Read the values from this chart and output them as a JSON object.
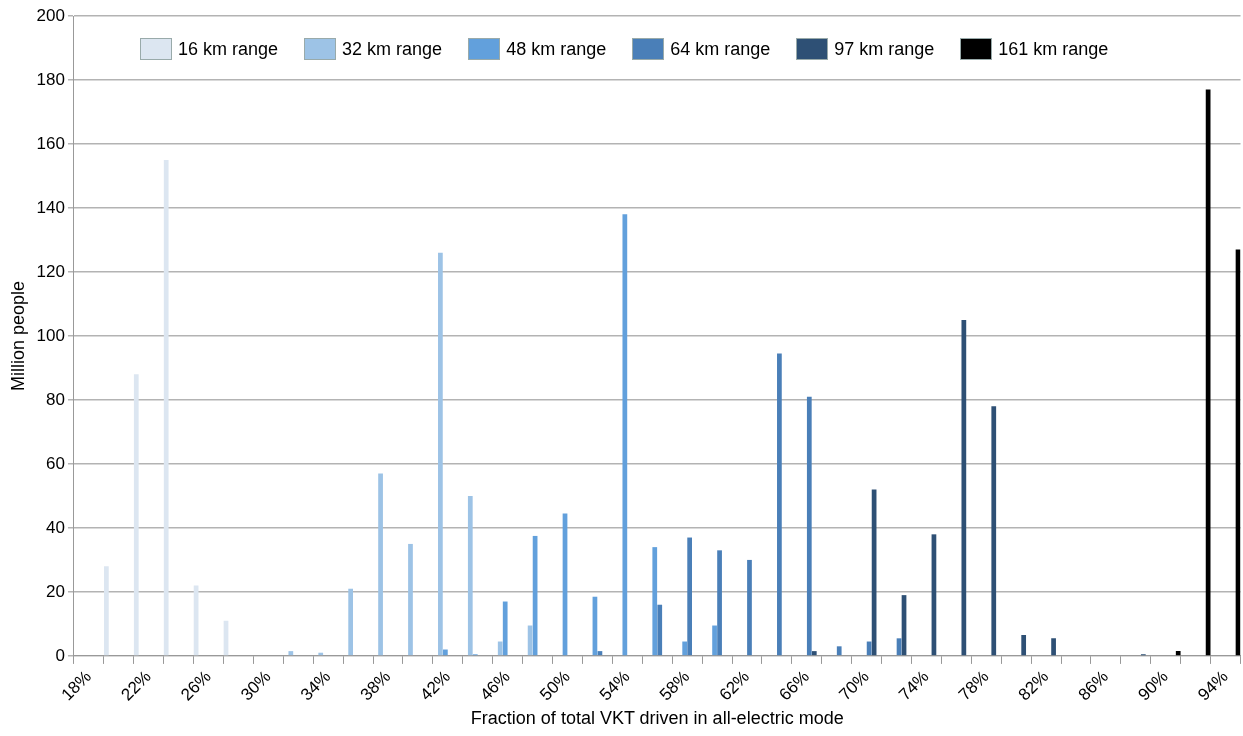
{
  "chart_data": {
    "type": "bar",
    "xlabel": "Fraction of total VKT driven in all-electric mode",
    "ylabel": "Million people",
    "categories": [
      "18%",
      null,
      "22%",
      null,
      "26%",
      null,
      "30%",
      null,
      "34%",
      null,
      "38%",
      null,
      "42%",
      null,
      "46%",
      null,
      "50%",
      null,
      "54%",
      null,
      "58%",
      null,
      "62%",
      null,
      "66%",
      null,
      "70%",
      null,
      "74%",
      null,
      "78%",
      null,
      "82%",
      null,
      "86%",
      null,
      "90%",
      null,
      "94%"
    ],
    "series": [
      {
        "name": "16 km range",
        "color": "#dce6f1",
        "values": [
          null,
          28,
          88,
          155,
          22,
          11,
          null,
          null,
          null,
          null,
          null,
          null,
          null,
          null,
          null,
          null,
          null,
          null,
          null,
          null,
          null,
          null,
          null,
          null,
          null,
          null,
          null,
          null,
          null,
          null,
          null,
          null,
          null,
          null,
          null,
          null,
          null,
          null,
          null
        ]
      },
      {
        "name": "32 km range",
        "color": "#9dc3e6",
        "values": [
          null,
          null,
          null,
          null,
          null,
          null,
          null,
          1.5,
          1,
          21,
          57,
          35,
          126,
          50,
          4.5,
          9.5,
          null,
          null,
          null,
          null,
          null,
          null,
          null,
          null,
          null,
          null,
          null,
          null,
          null,
          null,
          null,
          null,
          null,
          null,
          null,
          null,
          null,
          null,
          null
        ]
      },
      {
        "name": "48 km range",
        "color": "#62a0dc",
        "values": [
          null,
          null,
          null,
          null,
          null,
          null,
          null,
          null,
          null,
          null,
          null,
          null,
          2,
          0.5,
          17,
          37.5,
          44.5,
          18.5,
          138,
          34,
          4.5,
          9.5,
          null,
          null,
          null,
          null,
          null,
          null,
          null,
          null,
          null,
          null,
          null,
          null,
          null,
          null,
          null,
          null,
          null
        ]
      },
      {
        "name": "64 km range",
        "color": "#4a7fb8",
        "values": [
          null,
          null,
          null,
          null,
          null,
          null,
          null,
          null,
          null,
          null,
          null,
          null,
          null,
          null,
          null,
          null,
          null,
          1.5,
          null,
          16,
          37,
          33,
          30,
          94.5,
          81,
          3,
          4.5,
          5.5,
          null,
          null,
          null,
          null,
          null,
          null,
          null,
          null,
          null,
          null,
          null
        ]
      },
      {
        "name": "97 km range",
        "color": "#2e5075",
        "values": [
          null,
          null,
          null,
          null,
          null,
          null,
          null,
          null,
          null,
          null,
          null,
          null,
          null,
          null,
          null,
          null,
          null,
          null,
          null,
          null,
          null,
          null,
          null,
          null,
          1.5,
          null,
          52,
          19,
          38,
          105,
          78,
          6.5,
          5.5,
          null,
          null,
          0.5,
          null,
          null,
          null
        ]
      },
      {
        "name": "161 km range",
        "color": "#000000",
        "values": [
          null,
          null,
          null,
          null,
          null,
          null,
          null,
          null,
          null,
          null,
          null,
          null,
          null,
          null,
          null,
          null,
          null,
          null,
          null,
          null,
          null,
          null,
          null,
          null,
          null,
          null,
          null,
          null,
          null,
          null,
          null,
          null,
          null,
          null,
          null,
          null,
          1.5,
          177,
          127
        ]
      }
    ],
    "ylim": [
      0,
      200
    ],
    "yticks": [
      0,
      20,
      40,
      60,
      80,
      100,
      120,
      140,
      160,
      180,
      200
    ],
    "grid": "y",
    "legend": "top"
  }
}
